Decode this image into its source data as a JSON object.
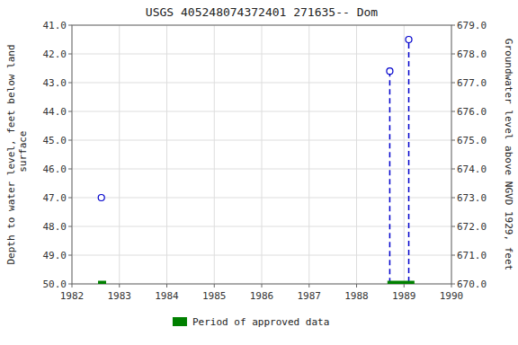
{
  "chart_data": {
    "type": "line",
    "title": "USGS 405248074372401 271635-- Dom",
    "ylabel": "Depth to water level, feet below land\n surface",
    "y2label": "Groundwater level above NGVD 1929, feet",
    "xlim": [
      1982,
      1990
    ],
    "xticks": [
      1982,
      1983,
      1984,
      1985,
      1986,
      1987,
      1988,
      1989,
      1990
    ],
    "ylim": [
      50.0,
      41.0
    ],
    "yticks": [
      {
        "value": 41.0,
        "label": "41.0"
      },
      {
        "value": 42.0,
        "label": "42.0"
      },
      {
        "value": 43.0,
        "label": "43.0"
      },
      {
        "value": 44.0,
        "label": "44.0"
      },
      {
        "value": 45.0,
        "label": "45.0"
      },
      {
        "value": 46.0,
        "label": "46.0"
      },
      {
        "value": 47.0,
        "label": "47.0"
      },
      {
        "value": 48.0,
        "label": "48.0"
      },
      {
        "value": 49.0,
        "label": "49.0"
      },
      {
        "value": 50.0,
        "label": "50.0"
      }
    ],
    "y2lim": [
      670.0,
      679.0
    ],
    "y2ticks": [
      {
        "value": 679.0,
        "label": "679.0"
      },
      {
        "value": 678.0,
        "label": "678.0"
      },
      {
        "value": 677.0,
        "label": "677.0"
      },
      {
        "value": 676.0,
        "label": "676.0"
      },
      {
        "value": 675.0,
        "label": "675.0"
      },
      {
        "value": 674.0,
        "label": "674.0"
      },
      {
        "value": 673.0,
        "label": "673.0"
      },
      {
        "value": 672.0,
        "label": "672.0"
      },
      {
        "value": 671.0,
        "label": "671.0"
      },
      {
        "value": 670.0,
        "label": "670.0"
      }
    ],
    "grid": true,
    "legend": "bottom",
    "series": [
      {
        "type": "line",
        "line_style": "dashed",
        "color": "#0000cc",
        "x": [
          1988.7,
          1988.7,
          1989.1,
          1989.1
        ],
        "values": [
          42.6,
          50.0,
          50.0,
          41.5
        ]
      },
      {
        "type": "scatter",
        "marker": "open-circle",
        "color": "#0000cc",
        "x": [
          1982.62,
          1988.7,
          1989.1
        ],
        "values": [
          47.0,
          42.6,
          41.5
        ]
      },
      {
        "name": "Period of approved data",
        "type": "span",
        "color": "#008000",
        "x": [
          [
            1982.55,
            1982.72
          ],
          [
            1988.65,
            1989.22
          ]
        ],
        "values": [
          50.0,
          50.0
        ]
      }
    ]
  }
}
